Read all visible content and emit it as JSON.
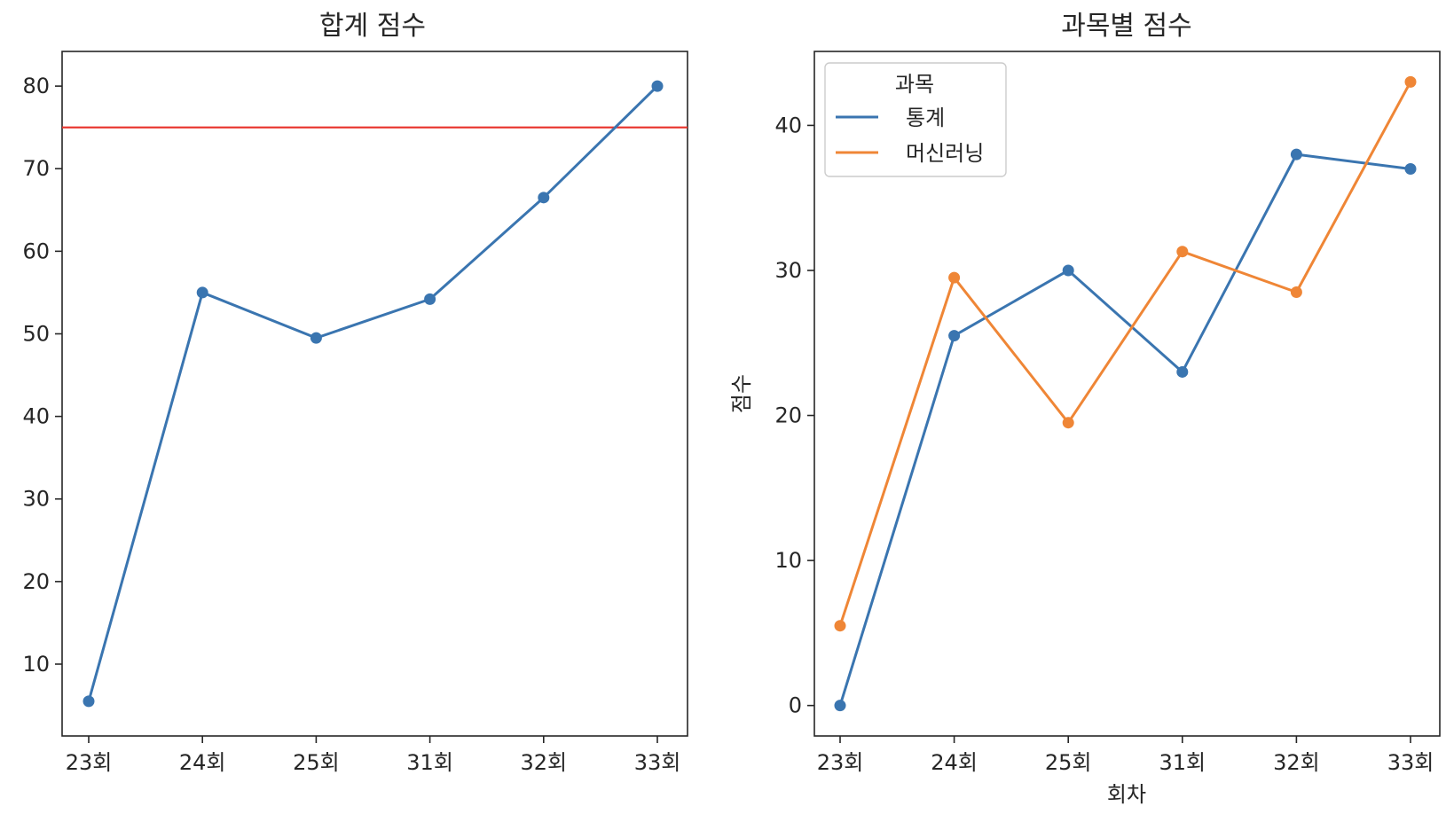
{
  "chart_data": [
    {
      "type": "line",
      "title": "합계 점수",
      "xlabel": "",
      "ylabel": "",
      "categories": [
        "23회",
        "24회",
        "25회",
        "31회",
        "32회",
        "33회"
      ],
      "series": [
        {
          "values": [
            5.5,
            55,
            49.5,
            54.2,
            66.5,
            80
          ],
          "color": "#3a75b0",
          "markers": true
        }
      ],
      "reference_line": {
        "y": 75,
        "color": "#e8312a"
      },
      "ylim": [
        1.3,
        84.2
      ],
      "yticks": [
        10,
        20,
        30,
        40,
        50,
        60,
        70,
        80
      ],
      "grid": false
    },
    {
      "type": "line",
      "title": "과목별 점수",
      "xlabel": "회차",
      "ylabel": "점수",
      "categories": [
        "23회",
        "24회",
        "25회",
        "31회",
        "32회",
        "33회"
      ],
      "series": [
        {
          "name": "통계",
          "values": [
            0,
            25.5,
            30,
            23,
            38,
            37
          ],
          "color": "#3a75b0",
          "markers": true
        },
        {
          "name": "머신러닝",
          "values": [
            5.5,
            29.5,
            19.5,
            31.3,
            28.5,
            43
          ],
          "color": "#ef8636",
          "markers": true
        }
      ],
      "legend": {
        "title": "과목",
        "placement": "top-left"
      },
      "ylim": [
        -2.1,
        45.1
      ],
      "yticks": [
        0,
        10,
        20,
        30,
        40
      ],
      "grid": false
    }
  ]
}
